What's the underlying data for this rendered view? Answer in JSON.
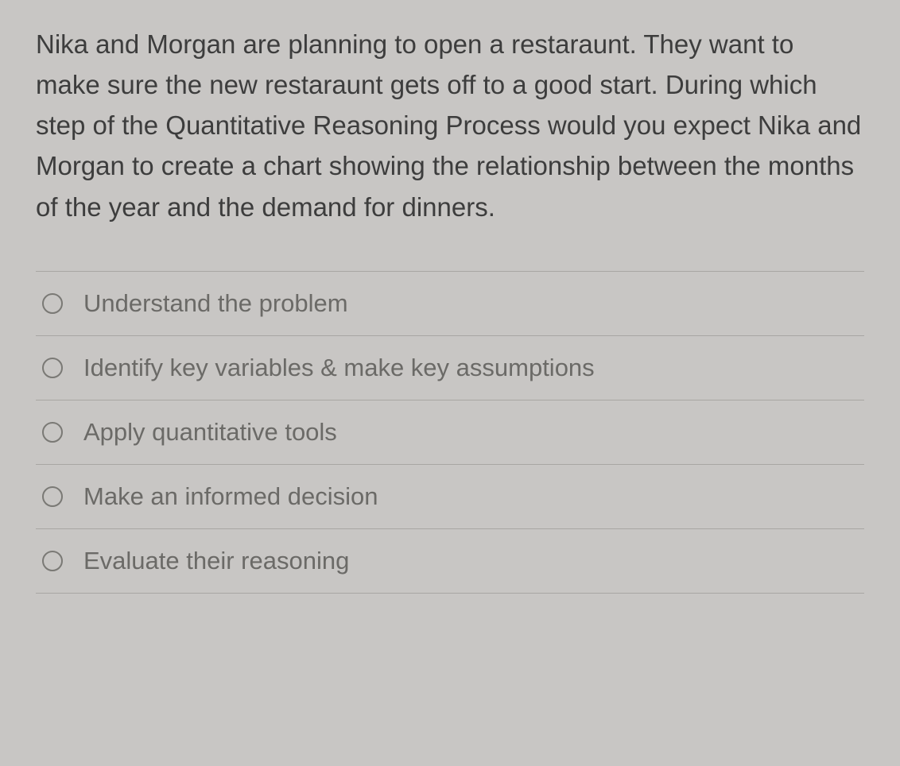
{
  "question": {
    "text": "Nika and Morgan are planning to open a restaraunt. They want to make sure the new restaraunt gets off to a good start. During which step of the Quantitative Reasoning Process would you expect Nika and Morgan to create a chart showing the relationship between the months of the year and the demand for dinners.",
    "text_color": "#3d3d3d",
    "fontsize": 33
  },
  "options": [
    {
      "label": "Understand the problem"
    },
    {
      "label": "Identify key variables & make key assumptions"
    },
    {
      "label": "Apply quantitative tools"
    },
    {
      "label": "Make an informed decision"
    },
    {
      "label": "Evaluate their reasoning"
    }
  ],
  "styling": {
    "background_color": "#c8c6c4",
    "divider_color": "#a8a6a3",
    "option_text_color": "#6b6a67",
    "radio_border_color": "#7a7975",
    "option_fontsize": 31
  }
}
